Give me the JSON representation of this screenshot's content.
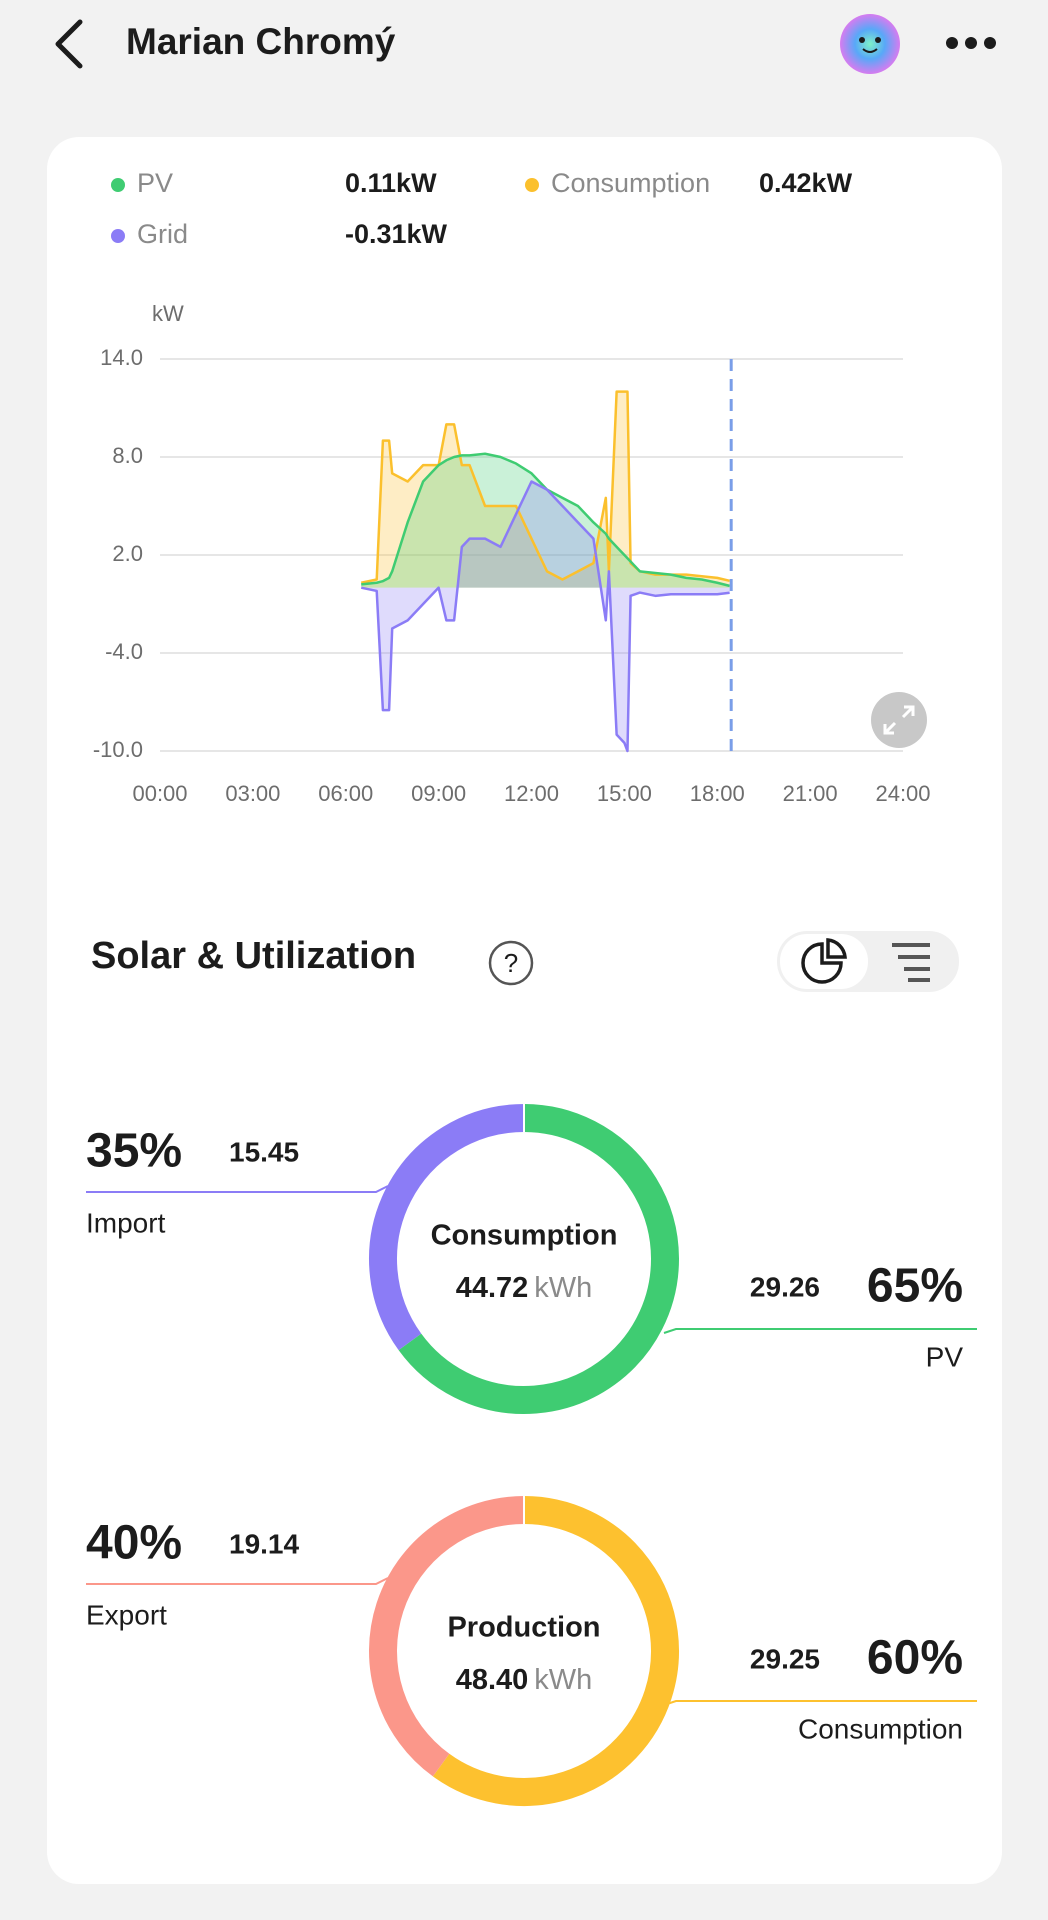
{
  "header": {
    "title": "Marian Chromý"
  },
  "section": {
    "title": "Solar & Utilization"
  },
  "chart_data": [
    {
      "type": "line",
      "y_label": "kW",
      "x": [
        6.5,
        7,
        7.2,
        7.4,
        7.5,
        8,
        8.5,
        9,
        9.25,
        9.5,
        9.75,
        10,
        10.5,
        11,
        11.5,
        12,
        12.5,
        13,
        13.5,
        14,
        14.4,
        14.5,
        14.75,
        15,
        15.1,
        15.2,
        15.5,
        16,
        16.5,
        17,
        17.5,
        18,
        18.4
      ],
      "series": [
        {
          "name": "PV",
          "reading": "0.11kW",
          "color": "#3fcc72",
          "values": [
            0.2,
            0.3,
            0.4,
            0.6,
            1,
            4,
            6.5,
            7.5,
            7.8,
            8,
            8.1,
            8.1,
            8.2,
            8,
            7.6,
            7,
            6,
            5.5,
            5,
            4,
            3.3,
            3,
            2.5,
            2,
            1.8,
            1.6,
            1,
            0.9,
            0.8,
            0.6,
            0.5,
            0.3,
            0.11
          ]
        },
        {
          "name": "Consumption",
          "reading": "0.42kW",
          "color": "#fbc02d",
          "values": [
            0.3,
            0.5,
            9,
            9,
            7,
            6.5,
            7.5,
            7.5,
            10,
            10,
            7.5,
            7.5,
            5,
            5,
            5,
            3,
            1,
            0.5,
            1,
            1.5,
            5.5,
            1,
            12,
            12,
            12,
            1.5,
            1,
            0.8,
            0.8,
            0.8,
            0.7,
            0.6,
            0.42
          ]
        },
        {
          "name": "Grid",
          "reading": "-0.31kW",
          "color": "#8b7cf6",
          "values": [
            0,
            -0.2,
            -7.5,
            -7.5,
            -2.5,
            -2,
            -1,
            0,
            -2,
            -2,
            2.5,
            3,
            3,
            2.5,
            4.5,
            6.5,
            6,
            5,
            4,
            3,
            -2,
            1,
            -9,
            -9.5,
            -10,
            -0.5,
            -0.3,
            -0.5,
            -0.4,
            -0.4,
            -0.4,
            -0.4,
            -0.31
          ]
        }
      ],
      "cursor_x": 18.45,
      "xlim": [
        0,
        24
      ],
      "xticks": [
        {
          "value": 0,
          "label": "00:00"
        },
        {
          "value": 3,
          "label": "03:00"
        },
        {
          "value": 6,
          "label": "06:00"
        },
        {
          "value": 9,
          "label": "09:00"
        },
        {
          "value": 12,
          "label": "12:00"
        },
        {
          "value": 15,
          "label": "15:00"
        },
        {
          "value": 18,
          "label": "18:00"
        },
        {
          "value": 21,
          "label": "21:00"
        },
        {
          "value": 24,
          "label": "24:00"
        }
      ],
      "ylim": [
        -10,
        14
      ],
      "yticks": [
        {
          "value": -10,
          "label": "-10.0"
        },
        {
          "value": -4,
          "label": "-4.0"
        },
        {
          "value": 2,
          "label": "2.0"
        },
        {
          "value": 8,
          "label": "8.0"
        },
        {
          "value": 14,
          "label": "14.0"
        }
      ],
      "grid": true
    },
    {
      "type": "pie",
      "title": "Consumption",
      "total": 44.72,
      "unit": "kWh",
      "categories": [
        "Import",
        "PV"
      ],
      "values": [
        35,
        65
      ],
      "value_labels": [
        "35%",
        "65%"
      ],
      "amounts": [
        15.45,
        29.26
      ],
      "colors": [
        "#8b7cf6",
        "#3fcc72"
      ]
    },
    {
      "type": "pie",
      "title": "Production",
      "total": 48.4,
      "total_label": "48.40",
      "unit": "kWh",
      "categories": [
        "Export",
        "Consumption"
      ],
      "values": [
        40,
        60
      ],
      "value_labels": [
        "40%",
        "60%"
      ],
      "amounts": [
        19.14,
        29.25
      ],
      "colors": [
        "#fb978a",
        "#fdc12f"
      ]
    }
  ]
}
